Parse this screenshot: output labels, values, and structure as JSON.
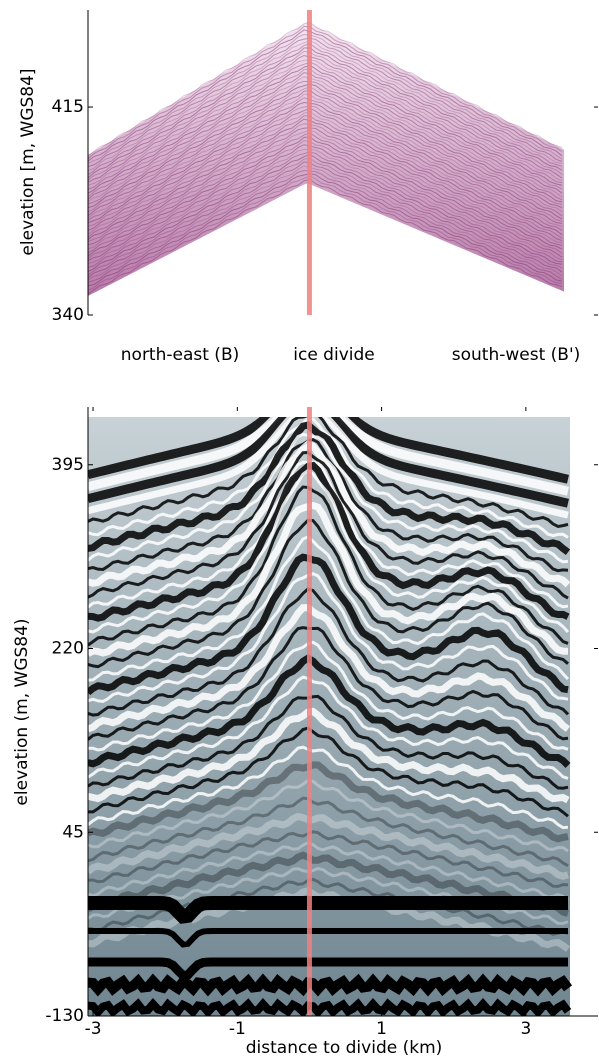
{
  "chart_data": [
    {
      "type": "image",
      "ylabel": "elevation [m, WGS84]",
      "ylim": [
        340,
        450
      ],
      "yticks": [
        340,
        415
      ],
      "xlim": [
        -3.07,
        4.0
      ],
      "divide_x": 0,
      "divide_color": "#f08080",
      "annotations": [
        "north-east (B)",
        "ice divide",
        "south-west (B')"
      ]
    },
    {
      "type": "image",
      "ylabel": "elevation (m, WGS84)",
      "xlabel": "distance to divide (km)",
      "ylim": [
        -130,
        450
      ],
      "yticks": [
        -130,
        45,
        220,
        395
      ],
      "xlim": [
        -3.07,
        4.0
      ],
      "xticks": [
        -3,
        -1,
        1,
        3
      ],
      "divide_x": 0,
      "divide_color": "#f08080"
    }
  ]
}
